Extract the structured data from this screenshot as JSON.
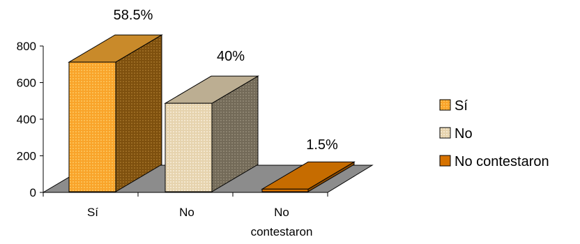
{
  "chart_data": {
    "type": "bar",
    "style": "3d-column",
    "categories": [
      "Sí",
      "No",
      "No contestaron"
    ],
    "category_label_lines": [
      [
        "Sí"
      ],
      [
        "No"
      ],
      [
        "No",
        "contestaron"
      ]
    ],
    "values": [
      712,
      487,
      18
    ],
    "data_labels": [
      "58.5%",
      "40%",
      "1.5%"
    ],
    "ylim": [
      0,
      800
    ],
    "yticks": [
      0,
      200,
      400,
      600,
      800
    ],
    "ytick_labels": [
      "0",
      "200",
      "400",
      "600",
      "800"
    ],
    "grid": false,
    "legend": {
      "position": "right",
      "entries": [
        "Sí",
        "No",
        "No contestaron"
      ]
    },
    "colors": {
      "si_front": "#F9A42A",
      "si_side": "#8C5A12",
      "si_top": "#C98A2A",
      "no_front": "#EBD8B5",
      "no_side": "#7E7461",
      "no_top": "#BCAE92",
      "nc_front": "#D67200",
      "nc_side": "#8A4A00",
      "nc_top": "#C66C00",
      "floor": "#8C8C8C"
    }
  }
}
